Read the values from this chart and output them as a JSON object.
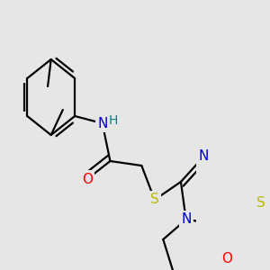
{
  "bg_color": "#e6e6e6",
  "bond_color": "#000000",
  "bond_lw": 1.6,
  "dbo": 0.012,
  "colors": {
    "N": "#0000cc",
    "O": "#ff0000",
    "S": "#bbbb00",
    "H": "#008080",
    "C": "#000000"
  },
  "fs": 10
}
